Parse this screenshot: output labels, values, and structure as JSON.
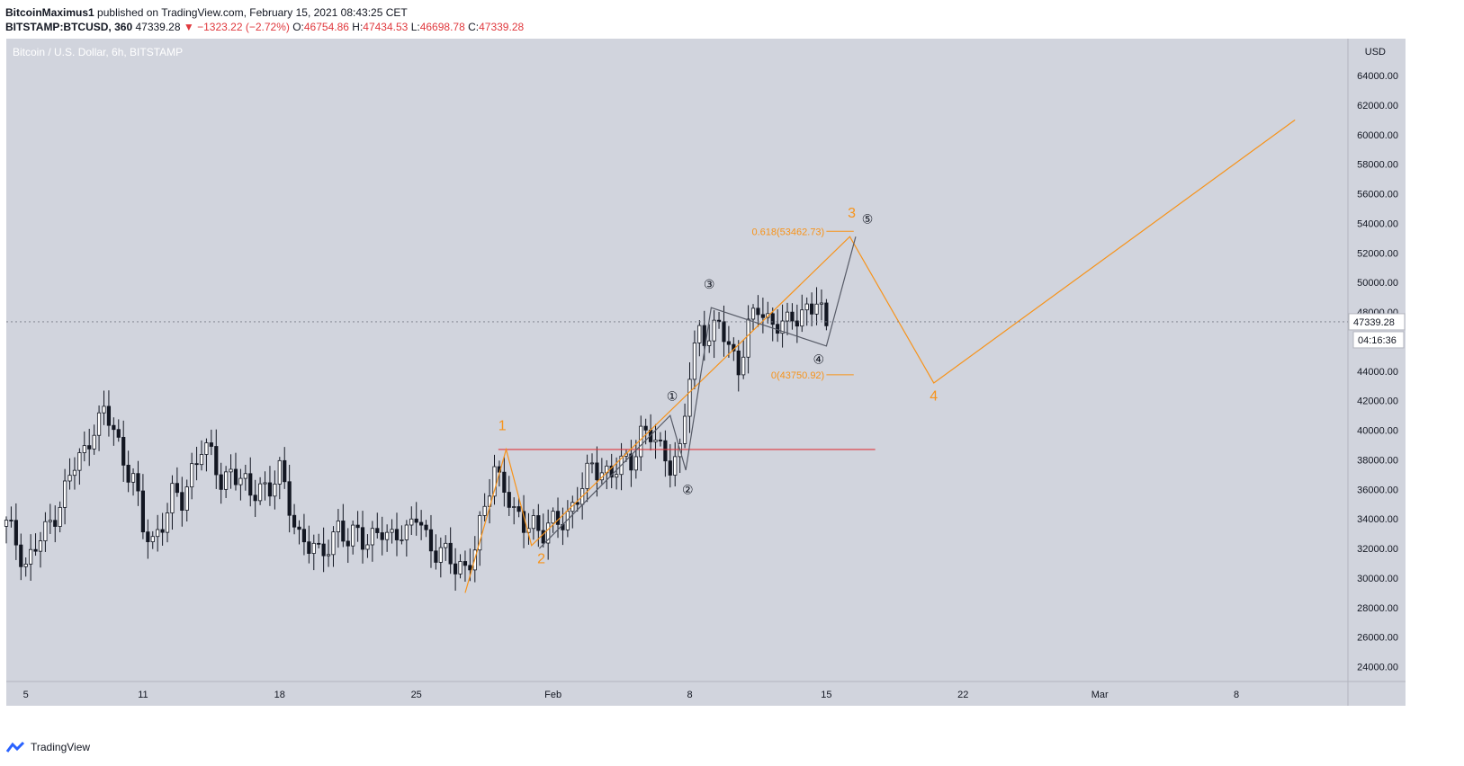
{
  "header": {
    "publisher": "BitcoinMaximus1",
    "published_text": "published on TradingView.com, February 15, 2021 08:43:25 CET",
    "symbol": "BITSTAMP:BTCUSD, 360",
    "last": "47339.28",
    "change": "−1323.22 (−2.72%)",
    "open_label": "O:",
    "open": "46754.86",
    "high_label": "H:",
    "high": "47434.53",
    "low_label": "L:",
    "low": "46698.78",
    "close_label": "C:",
    "close": "47339.28"
  },
  "legend_title": "Bitcoin / U.S. Dollar, 6h, BITSTAMP",
  "footer": {
    "brand": "TradingView"
  },
  "colors": {
    "plot_bg": "#d1d4dd",
    "candle": "#131722",
    "orange": "#f7931a",
    "red_line": "#e0393e",
    "dark_line": "#565a66"
  },
  "chart_data": {
    "type": "candlestick",
    "ylim": [
      23000,
      66500
    ],
    "currency_label": "USD",
    "y_ticks": [
      24000,
      26000,
      28000,
      30000,
      32000,
      34000,
      36000,
      38000,
      40000,
      42000,
      44000,
      46000,
      48000,
      50000,
      52000,
      54000,
      56000,
      58000,
      60000,
      62000,
      64000
    ],
    "x_ticks": [
      {
        "label": "5",
        "day": 5
      },
      {
        "label": "11",
        "day": 11
      },
      {
        "label": "18",
        "day": 18
      },
      {
        "label": "25",
        "day": 25
      },
      {
        "label": "Feb",
        "day": 32
      },
      {
        "label": "8",
        "day": 39
      },
      {
        "label": "15",
        "day": 46
      },
      {
        "label": "22",
        "day": 53
      },
      {
        "label": "Mar",
        "day": 60
      },
      {
        "label": "8",
        "day": 67
      }
    ],
    "x_axis_unit": "days (Jan 2021 = 1..31, Feb = 32..59, Mar = 60..)",
    "price_label": "47339.28",
    "countdown_label": "04:16:36",
    "close_path": [
      [
        4.0,
        33500
      ],
      [
        4.5,
        32500
      ],
      [
        5.0,
        31000
      ],
      [
        5.5,
        32000
      ],
      [
        6.0,
        33000
      ],
      [
        6.5,
        34500
      ],
      [
        7.0,
        36000
      ],
      [
        7.5,
        37500
      ],
      [
        8.0,
        38500
      ],
      [
        8.5,
        40500
      ],
      [
        9.0,
        41000
      ],
      [
        9.5,
        40000
      ],
      [
        10.0,
        38000
      ],
      [
        10.5,
        37000
      ],
      [
        11.0,
        33000
      ],
      [
        11.5,
        32500
      ],
      [
        12.0,
        34000
      ],
      [
        12.5,
        35500
      ],
      [
        13.0,
        35000
      ],
      [
        13.5,
        37500
      ],
      [
        14.0,
        39000
      ],
      [
        14.5,
        38000
      ],
      [
        15.0,
        36500
      ],
      [
        15.5,
        37500
      ],
      [
        16.0,
        36500
      ],
      [
        16.5,
        35500
      ],
      [
        17.0,
        36500
      ],
      [
        17.5,
        36000
      ],
      [
        18.0,
        37000
      ],
      [
        18.5,
        35000
      ],
      [
        19.0,
        33000
      ],
      [
        19.5,
        32000
      ],
      [
        20.0,
        31500
      ],
      [
        20.5,
        32500
      ],
      [
        21.0,
        33500
      ],
      [
        21.5,
        32000
      ],
      [
        22.0,
        33500
      ],
      [
        22.5,
        32500
      ],
      [
        23.0,
        33000
      ],
      [
        23.5,
        32500
      ],
      [
        24.0,
        33500
      ],
      [
        24.5,
        33000
      ],
      [
        25.0,
        34000
      ],
      [
        25.5,
        32800
      ],
      [
        26.0,
        32000
      ],
      [
        26.5,
        31500
      ],
      [
        27.0,
        30500
      ],
      [
        27.5,
        31000
      ],
      [
        28.0,
        32000
      ],
      [
        28.5,
        34500
      ],
      [
        29.0,
        37500
      ],
      [
        29.5,
        36500
      ],
      [
        30.0,
        34000
      ],
      [
        30.5,
        33500
      ],
      [
        31.0,
        34000
      ],
      [
        31.5,
        33000
      ],
      [
        32.0,
        33500
      ],
      [
        32.5,
        34000
      ],
      [
        33.0,
        35000
      ],
      [
        33.5,
        36000
      ],
      [
        34.0,
        37500
      ],
      [
        34.5,
        37500
      ],
      [
        35.0,
        37000
      ],
      [
        35.5,
        37500
      ],
      [
        36.0,
        38000
      ],
      [
        36.5,
        40000
      ],
      [
        37.0,
        39500
      ],
      [
        37.5,
        38500
      ],
      [
        38.0,
        38000
      ],
      [
        38.5,
        38500
      ],
      [
        39.0,
        43500
      ],
      [
        39.5,
        47000
      ],
      [
        40.0,
        46500
      ],
      [
        40.5,
        47000
      ],
      [
        41.0,
        45500
      ],
      [
        41.5,
        44500
      ],
      [
        42.0,
        47000
      ],
      [
        42.5,
        48000
      ],
      [
        43.0,
        47500
      ],
      [
        43.5,
        47500
      ],
      [
        44.0,
        47000
      ],
      [
        44.5,
        47500
      ],
      [
        45.0,
        48500
      ],
      [
        45.5,
        48800
      ],
      [
        46.0,
        46500
      ],
      [
        46.2,
        47339
      ]
    ],
    "horizontal_line": {
      "value": 38700,
      "from_day": 29.2,
      "to_day": 48.5
    },
    "wave_labels": [
      {
        "label": "1",
        "day": 29.4,
        "value": 40000,
        "color": "orange"
      },
      {
        "label": "2",
        "day": 31.4,
        "value": 31000,
        "color": "orange"
      },
      {
        "label": "3",
        "day": 47.3,
        "value": 54400,
        "color": "orange"
      },
      {
        "label": "4",
        "day": 51.5,
        "value": 42000,
        "color": "orange"
      },
      {
        "label": "①",
        "day": 38.1,
        "value": 42000,
        "color": "dark"
      },
      {
        "label": "②",
        "day": 38.9,
        "value": 35700,
        "color": "dark"
      },
      {
        "label": "③",
        "day": 40.0,
        "value": 49600,
        "color": "dark"
      },
      {
        "label": "④",
        "day": 45.6,
        "value": 44500,
        "color": "dark"
      },
      {
        "label": "⑤",
        "day": 48.1,
        "value": 54000,
        "color": "dark"
      }
    ],
    "fib_levels": [
      {
        "label": "0.618(53462.73)",
        "value": 53462.73
      },
      {
        "label": "0(43750.92)",
        "value": 43750.92
      }
    ],
    "orange_path": [
      [
        27.5,
        29000
      ],
      [
        29.6,
        38700
      ],
      [
        30.9,
        32200
      ],
      [
        47.2,
        53100
      ],
      [
        51.5,
        43200
      ],
      [
        70,
        61000
      ]
    ],
    "dark_path": [
      [
        31.3,
        32000
      ],
      [
        38.0,
        41000
      ],
      [
        38.8,
        37300
      ],
      [
        40.1,
        48300
      ],
      [
        46.0,
        45700
      ],
      [
        47.5,
        53100
      ]
    ]
  }
}
